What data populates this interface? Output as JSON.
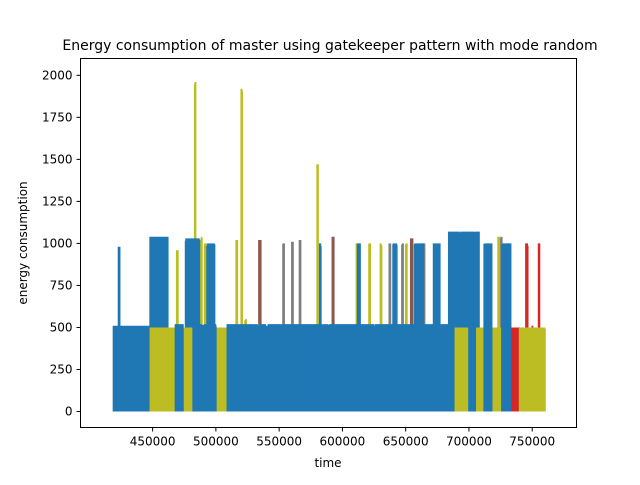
{
  "chart_data": {
    "type": "line",
    "title": "Energy consumption of master using gatekeeper pattern with mode random",
    "xlabel": "time",
    "ylabel": "energy consumption",
    "xlim": [
      393000,
      785000
    ],
    "ylim": [
      -95,
      2100
    ],
    "xticks": [
      450000,
      500000,
      550000,
      600000,
      650000,
      700000,
      750000
    ],
    "xtick_labels": [
      "450000",
      "500000",
      "550000",
      "600000",
      "650000",
      "700000",
      "750000"
    ],
    "yticks": [
      0,
      250,
      500,
      750,
      1000,
      1250,
      1500,
      1750,
      2000
    ],
    "ytick_labels": [
      "0",
      "250",
      "500",
      "750",
      "1000",
      "1250",
      "1500",
      "1750",
      "2000"
    ],
    "grid": false,
    "colors": {
      "blue": "#1f77b4",
      "olive": "#bcbd22",
      "brown": "#8c564b",
      "gray": "#7f7f7f",
      "red": "#d62728"
    },
    "series": [
      {
        "color": "red",
        "segments": [
          {
            "x0": 733000,
            "x1": 760000,
            "low": 0,
            "high": 500
          },
          {
            "x0": 745000,
            "x1": 746500,
            "low": 0,
            "high": 1000
          },
          {
            "x0": 750000,
            "x1": 750500,
            "low": 0,
            "high": 510
          },
          {
            "x0": 755000,
            "x1": 755800,
            "low": 0,
            "high": 1000
          }
        ]
      },
      {
        "color": "brown",
        "segments": [
          {
            "x0": 534000,
            "x1": 535500,
            "low": 0,
            "high": 1020
          },
          {
            "x0": 592000,
            "x1": 593200,
            "low": 0,
            "high": 1040
          },
          {
            "x0": 654000,
            "x1": 655500,
            "low": 0,
            "high": 1030
          },
          {
            "x0": 730500,
            "x1": 731500,
            "low": 0,
            "high": 1000
          }
        ]
      },
      {
        "color": "gray",
        "segments": [
          {
            "x0": 553000,
            "x1": 554000,
            "low": 0,
            "high": 1000
          },
          {
            "x0": 560000,
            "x1": 561000,
            "low": 0,
            "high": 1010
          },
          {
            "x0": 566000,
            "x1": 567000,
            "low": 0,
            "high": 1020
          },
          {
            "x0": 637000,
            "x1": 638000,
            "low": 0,
            "high": 1000
          },
          {
            "x0": 647000,
            "x1": 648000,
            "low": 0,
            "high": 1000
          },
          {
            "x0": 664000,
            "x1": 665000,
            "low": 0,
            "high": 1000
          },
          {
            "x0": 714000,
            "x1": 715000,
            "low": 0,
            "high": 1000
          },
          {
            "x0": 725000,
            "x1": 726000,
            "low": 0,
            "high": 1040
          }
        ]
      },
      {
        "color": "olive",
        "segments": [
          {
            "x0": 447000,
            "x1": 468000,
            "low": 0,
            "high": 500
          },
          {
            "x0": 474000,
            "x1": 482000,
            "low": 0,
            "high": 500
          },
          {
            "x0": 500000,
            "x1": 509000,
            "low": 0,
            "high": 500
          },
          {
            "x0": 688000,
            "x1": 700000,
            "low": 0,
            "high": 510
          },
          {
            "x0": 705000,
            "x1": 712000,
            "low": 0,
            "high": 500
          },
          {
            "x0": 718000,
            "x1": 726000,
            "low": 0,
            "high": 500
          },
          {
            "x0": 740000,
            "x1": 760000,
            "low": 0,
            "high": 500
          },
          {
            "x0": 469000,
            "x1": 470000,
            "low": 0,
            "high": 960
          },
          {
            "x0": 483200,
            "x1": 484000,
            "low": 0,
            "high": 1960
          },
          {
            "x0": 488000,
            "x1": 489000,
            "low": 0,
            "high": 1040
          },
          {
            "x0": 491000,
            "x1": 492000,
            "low": 0,
            "high": 1000
          },
          {
            "x0": 516000,
            "x1": 517000,
            "low": 0,
            "high": 1020
          },
          {
            "x0": 520000,
            "x1": 520800,
            "low": 0,
            "high": 1920
          },
          {
            "x0": 523000,
            "x1": 524000,
            "low": 0,
            "high": 550
          },
          {
            "x0": 580000,
            "x1": 580800,
            "low": 0,
            "high": 1470
          },
          {
            "x0": 611000,
            "x1": 612000,
            "low": 0,
            "high": 1000
          },
          {
            "x0": 621000,
            "x1": 622000,
            "low": 0,
            "high": 1000
          },
          {
            "x0": 630000,
            "x1": 631000,
            "low": 0,
            "high": 1000
          },
          {
            "x0": 650000,
            "x1": 651000,
            "low": 0,
            "high": 1000
          },
          {
            "x0": 723000,
            "x1": 724000,
            "low": 0,
            "high": 1040
          },
          {
            "x0": 728000,
            "x1": 729000,
            "low": 0,
            "high": 960
          }
        ]
      },
      {
        "color": "blue",
        "segments": [
          {
            "x0": 419000,
            "x1": 447000,
            "low": 0,
            "high": 510
          },
          {
            "x0": 423000,
            "x1": 424000,
            "low": 0,
            "high": 980
          },
          {
            "x0": 448000,
            "x1": 462000,
            "low": 500,
            "high": 1040
          },
          {
            "x0": 468000,
            "x1": 474000,
            "low": 0,
            "high": 520
          },
          {
            "x0": 476000,
            "x1": 487000,
            "low": 500,
            "high": 1030
          },
          {
            "x0": 482000,
            "x1": 500000,
            "low": 0,
            "high": 520
          },
          {
            "x0": 493000,
            "x1": 499000,
            "low": 500,
            "high": 1000
          },
          {
            "x0": 509000,
            "x1": 688000,
            "low": 0,
            "high": 520
          },
          {
            "x0": 582000,
            "x1": 583000,
            "low": 0,
            "high": 1000
          },
          {
            "x0": 612000,
            "x1": 614000,
            "low": 500,
            "high": 1000
          },
          {
            "x0": 640000,
            "x1": 643000,
            "low": 500,
            "high": 1000
          },
          {
            "x0": 657000,
            "x1": 664000,
            "low": 500,
            "high": 1000
          },
          {
            "x0": 672000,
            "x1": 677000,
            "low": 500,
            "high": 1000
          },
          {
            "x0": 684000,
            "x1": 708000,
            "low": 500,
            "high": 1070
          },
          {
            "x0": 700000,
            "x1": 705000,
            "low": 0,
            "high": 520
          },
          {
            "x0": 712000,
            "x1": 718000,
            "low": 0,
            "high": 1000
          },
          {
            "x0": 726000,
            "x1": 733000,
            "low": 0,
            "high": 1000
          }
        ]
      }
    ]
  }
}
